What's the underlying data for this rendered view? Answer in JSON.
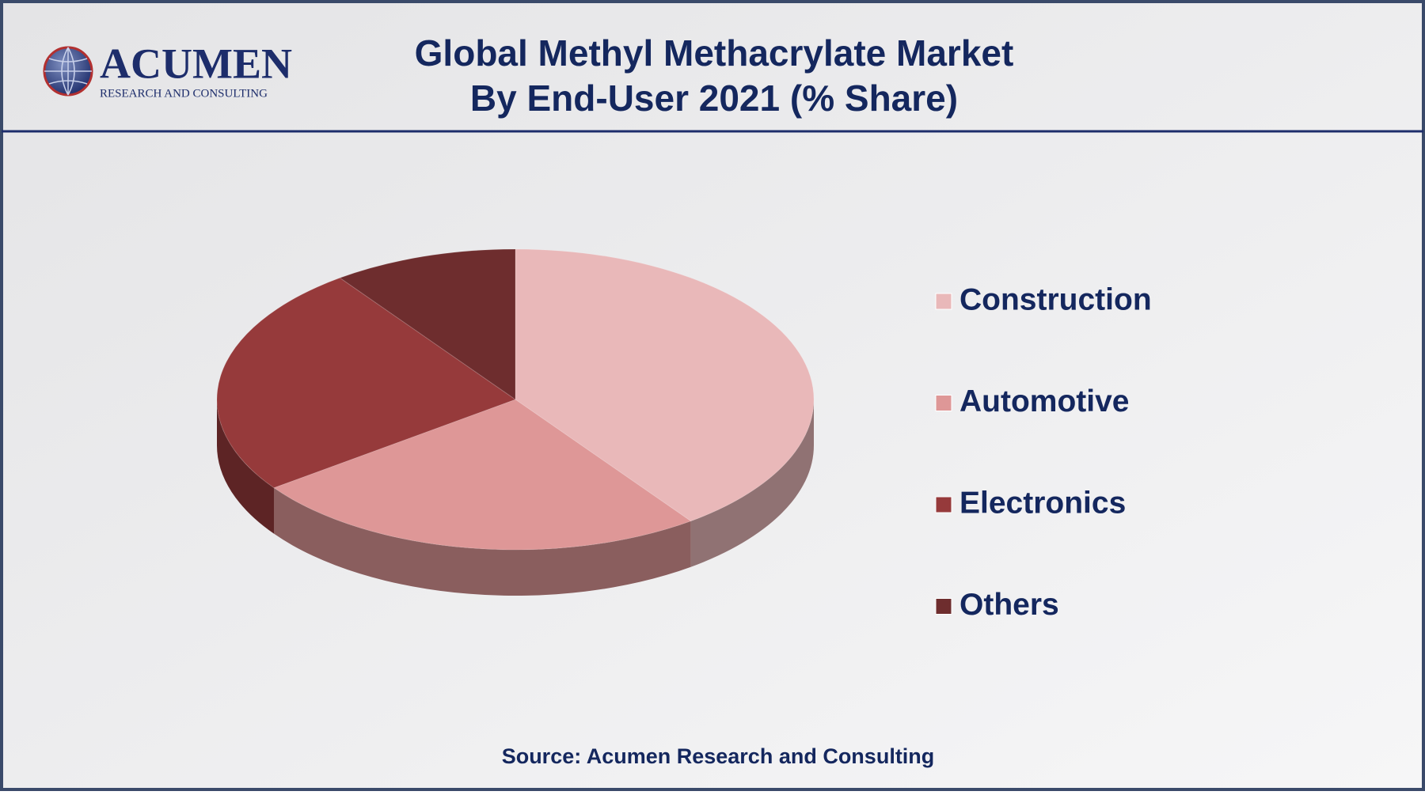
{
  "logo": {
    "name": "ACUMEN",
    "tagline": "RESEARCH AND CONSULTING"
  },
  "chart_data": {
    "type": "pie3d",
    "title": "Global Methyl Methacrylate Market",
    "subtitle": "By End-User 2021 (% Share)",
    "source": "Source: Acumen Research and Consulting",
    "categories": [
      "Construction",
      "Automotive",
      "Electronics",
      "Others"
    ],
    "values": [
      40,
      25,
      25,
      10
    ],
    "colors": [
      "#e9b8b9",
      "#de9797",
      "#963a3b",
      "#6e2d2e"
    ],
    "legend": "right"
  }
}
